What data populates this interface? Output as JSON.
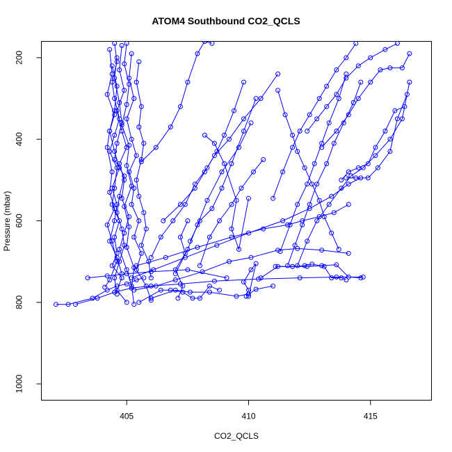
{
  "chart_data": {
    "type": "line",
    "title": "ATOM4 Southbound CO2_QCLS",
    "xlabel": "CO2_QCLS",
    "ylabel": "Pressure (mbar)",
    "xlim": [
      401.5,
      417.5
    ],
    "ylim": [
      1040,
      160
    ],
    "y_reversed": true,
    "xticks": [
      405,
      410,
      415
    ],
    "yticks": [
      200,
      400,
      600,
      800,
      1000
    ],
    "grid": false,
    "color": "#0000ff",
    "marker": "open-circle",
    "series": [
      {
        "x": [
          404.5,
          404.6,
          404.4,
          404.5,
          404.7,
          404.5,
          404.3,
          404.6,
          404.5,
          404.4,
          404.7,
          404.5,
          404.6,
          404.4,
          404.8,
          404.6,
          405.0
        ],
        "y": [
          165,
          210,
          260,
          300,
          350,
          390,
          430,
          470,
          520,
          560,
          600,
          640,
          680,
          710,
          740,
          770,
          800
        ]
      },
      {
        "x": [
          404.8,
          404.7,
          404.9,
          404.6,
          404.8,
          405.0,
          404.7,
          404.9,
          404.8,
          405.1,
          404.9,
          404.7,
          405.0,
          405.2,
          405.3
        ],
        "y": [
          170,
          230,
          280,
          330,
          380,
          420,
          460,
          500,
          545,
          590,
          630,
          670,
          720,
          760,
          805
        ]
      },
      {
        "x": [
          404.3,
          404.4,
          404.2,
          404.5,
          404.3,
          404.2,
          404.4,
          404.3,
          404.5,
          404.2,
          404.4,
          404.6,
          404.3,
          404.1
        ],
        "y": [
          180,
          240,
          290,
          340,
          380,
          420,
          480,
          530,
          570,
          610,
          650,
          700,
          745,
          763
        ]
      },
      {
        "x": [
          405.2,
          405.1,
          405.3,
          405.0,
          405.2,
          405.4,
          405.1,
          405.3,
          405.2,
          405.5,
          405.3,
          405.6,
          405.4,
          405.8,
          406.0
        ],
        "y": [
          190,
          250,
          300,
          350,
          400,
          440,
          480,
          520,
          560,
          600,
          640,
          680,
          720,
          760,
          795
        ]
      },
      {
        "x": [
          404.6,
          404.5,
          404.7,
          404.8,
          404.6,
          404.5,
          404.9,
          404.7,
          404.6,
          404.8,
          404.9,
          404.7,
          404.5,
          404.6
        ],
        "y": [
          200,
          250,
          310,
          360,
          410,
          450,
          490,
          540,
          580,
          620,
          660,
          700,
          740,
          780
        ]
      },
      {
        "x": [
          405.5,
          405.4,
          405.6,
          405.5,
          405.7,
          405.6,
          405.4,
          405.5,
          405.7,
          405.8,
          405.6,
          405.9,
          406.0
        ],
        "y": [
          210,
          260,
          320,
          370,
          410,
          450,
          500,
          540,
          580,
          620,
          660,
          700,
          740
        ]
      },
      {
        "x": [
          404.4,
          404.6,
          404.5,
          404.3,
          404.5,
          404.7,
          404.4,
          404.6,
          404.5,
          404.3,
          404.6,
          404.8
        ],
        "y": [
          220,
          270,
          330,
          380,
          430,
          470,
          520,
          560,
          600,
          650,
          690,
          730
        ]
      },
      {
        "x": [
          405.0,
          404.9,
          405.1,
          405.0,
          404.8,
          405.1,
          405.0,
          405.2,
          404.9,
          405.1,
          405.0,
          405.3,
          405.2
        ],
        "y": [
          165,
          215,
          265,
          315,
          365,
          415,
          465,
          515,
          565,
          615,
          665,
          715,
          765
        ]
      },
      {
        "x": [
          402.1,
          402.6,
          403.6,
          404.2,
          404.6,
          405.0,
          405.4,
          405.7
        ],
        "y": [
          805,
          805,
          790,
          770,
          760,
          755,
          745,
          740
        ]
      },
      {
        "x": [
          402.9,
          403.8,
          404.5,
          405.2,
          406.0,
          407.2,
          408.6,
          410.4,
          412.1,
          413.6,
          414.7
        ],
        "y": [
          805,
          790,
          775,
          765,
          760,
          755,
          748,
          743,
          740,
          738,
          738
        ]
      },
      {
        "x": [
          403.4,
          404.2,
          405.0,
          406.0,
          407.5,
          409.1
        ],
        "y": [
          740,
          735,
          730,
          725,
          720,
          740
        ]
      },
      {
        "x": [
          405.3,
          406.2,
          407.0,
          408.1,
          409.2,
          410.1,
          411.2,
          412.0,
          413.0,
          414.1
        ],
        "y": [
          770,
          760,
          745,
          725,
          700,
          690,
          672,
          668,
          672,
          680
        ]
      },
      {
        "x": [
          405.5,
          406.4,
          406.8,
          407.3,
          407.7,
          408.0,
          408.4,
          408.8
        ],
        "y": [
          800,
          770,
          770,
          775,
          790,
          790,
          760,
          770
        ]
      },
      {
        "x": [
          406.0,
          407.0,
          407.6,
          408.4,
          409.5,
          410.0,
          410.3,
          411.0
        ],
        "y": [
          790,
          770,
          775,
          775,
          785,
          780,
          768,
          760
        ]
      },
      {
        "x": [
          405.6,
          406.2,
          406.8,
          407.2,
          407.5,
          407.9,
          408.2,
          408.5
        ],
        "y": [
          455,
          420,
          370,
          320,
          260,
          190,
          160,
          165
        ]
      },
      {
        "x": [
          406.0,
          406.4,
          406.9,
          407.4,
          407.8,
          408.3,
          408.7,
          409.0,
          409.4,
          409.8
        ],
        "y": [
          690,
          640,
          600,
          560,
          510,
          470,
          430,
          390,
          330,
          260
        ]
      },
      {
        "x": [
          407.0,
          407.5,
          407.9,
          408.3,
          408.9,
          409.6,
          410.1
        ],
        "y": [
          730,
          670,
          610,
          550,
          480,
          420,
          360
        ]
      },
      {
        "x": [
          406.5,
          407.2,
          407.8,
          408.2,
          408.6,
          409.2,
          409.8,
          410.5,
          411.2
        ],
        "y": [
          600,
          560,
          520,
          480,
          440,
          400,
          350,
          300,
          240
        ]
      },
      {
        "x": [
          407.6,
          408.0,
          408.5,
          408.9,
          409.3,
          409.8,
          410.3
        ],
        "y": [
          650,
          600,
          570,
          520,
          460,
          380,
          300
        ]
      },
      {
        "x": [
          408.0,
          408.4,
          408.8,
          409.3,
          409.7,
          410.2,
          410.6
        ],
        "y": [
          710,
          640,
          600,
          560,
          520,
          480,
          450
        ]
      },
      {
        "x": [
          408.2,
          408.6,
          409.0,
          409.5,
          409.3,
          409.6,
          410.0
        ],
        "y": [
          390,
          410,
          460,
          550,
          620,
          670,
          545
        ]
      },
      {
        "x": [
          411.0,
          411.4,
          411.8,
          412.1,
          412.5,
          412.9,
          413.2,
          413.6,
          414.0,
          414.4
        ],
        "y": [
          545,
          480,
          420,
          380,
          340,
          300,
          270,
          230,
          200,
          165
        ]
      },
      {
        "x": [
          411.3,
          411.7,
          412.0,
          412.4,
          412.7,
          413.0,
          413.3,
          413.7,
          414.0
        ],
        "y": [
          675,
          610,
          560,
          510,
          460,
          410,
          360,
          300,
          240
        ]
      },
      {
        "x": [
          411.6,
          411.9,
          412.2,
          412.5,
          412.8,
          413.2,
          413.5,
          413.9,
          414.3,
          414.6
        ],
        "y": [
          710,
          660,
          610,
          560,
          510,
          460,
          410,
          360,
          310,
          260
        ]
      },
      {
        "x": [
          411.2,
          411.5,
          411.8,
          412.0,
          412.3,
          412.6,
          412.9,
          413.1,
          413.4,
          413.7
        ],
        "y": [
          280,
          340,
          390,
          430,
          470,
          510,
          550,
          590,
          630,
          670
        ]
      },
      {
        "x": [
          412.0,
          412.4,
          412.8,
          413.3,
          413.8,
          414.2,
          414.7,
          415.2,
          415.8,
          416.3,
          416.6
        ],
        "y": [
          710,
          650,
          600,
          560,
          520,
          490,
          470,
          440,
          400,
          350,
          260
        ]
      },
      {
        "x": [
          412.4,
          412.8,
          413.2,
          413.6,
          414.0,
          414.5,
          415.0,
          415.6,
          416.1
        ],
        "y": [
          380,
          350,
          320,
          290,
          250,
          220,
          200,
          180,
          165
        ]
      },
      {
        "x": [
          413.8,
          414.1,
          414.5,
          414.9,
          415.2,
          415.6,
          416.0,
          416.4
        ],
        "y": [
          500,
          480,
          470,
          460,
          420,
          380,
          330,
          320
        ]
      },
      {
        "x": [
          414.0,
          414.4,
          414.9,
          415.3,
          415.8,
          416.1,
          416.5
        ],
        "y": [
          495,
          495,
          495,
          470,
          430,
          350,
          290
        ]
      },
      {
        "x": [
          413.0,
          413.6,
          414.1,
          414.5,
          415.0,
          415.4,
          415.8,
          416.3,
          416.6
        ],
        "y": [
          420,
          380,
          340,
          300,
          260,
          230,
          225,
          225,
          190
        ]
      },
      {
        "x": [
          410.5,
          411.2,
          411.8,
          412.4,
          413.0,
          413.6,
          414.1,
          414.6
        ],
        "y": [
          740,
          712,
          712,
          712,
          710,
          708,
          738,
          740
        ]
      },
      {
        "x": [
          411.1,
          411.8,
          412.3,
          412.6,
          413.1,
          413.4,
          413.8,
          414.0
        ],
        "y": [
          712,
          712,
          710,
          706,
          712,
          740,
          740,
          745
        ]
      },
      {
        "x": [
          405.4,
          406.6,
          407.9,
          409.3,
          410.6,
          411.6,
          412.2,
          412.9,
          413.5,
          414.1
        ],
        "y": [
          710,
          690,
          665,
          640,
          620,
          610,
          600,
          590,
          580,
          560
        ]
      },
      {
        "x": [
          405.2,
          406.1,
          407.4,
          408.7,
          410.0,
          411.4,
          412.5,
          413.4,
          414.1,
          414.6
        ],
        "y": [
          740,
          720,
          690,
          660,
          630,
          600,
          570,
          540,
          510,
          495
        ]
      },
      {
        "x": [
          409.9,
          410.0,
          409.8,
          410.1,
          410.3,
          410.0
        ],
        "y": [
          785,
          770,
          750,
          720,
          705,
          785
        ]
      },
      {
        "x": [
          407.1,
          407.3,
          407.0,
          407.4,
          407.2,
          407.5
        ],
        "y": [
          790,
          760,
          720,
          680,
          640,
          600
        ]
      }
    ]
  }
}
